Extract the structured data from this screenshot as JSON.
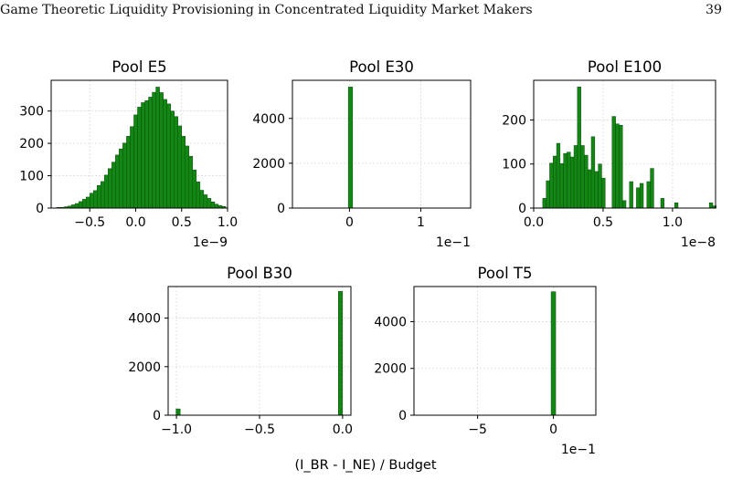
{
  "header": {
    "running_title": "Game Theoretic Liquidity Provisioning in Concentrated Liquidity Market Makers",
    "page_number": "39"
  },
  "colors": {
    "bar_fill": "#138713",
    "bar_edge": "#0d4d0d",
    "grid": "#d9d9d9"
  },
  "chart_data": [
    {
      "type": "bar",
      "title": "Pool E5",
      "xlabel": "",
      "ylabel": "",
      "x_offset_label": "1e−9",
      "xlim": [
        -0.92,
        1.0
      ],
      "ylim": [
        0,
        395
      ],
      "xticks": [
        -0.5,
        0.0,
        0.5,
        1.0
      ],
      "xtick_labels": [
        "−0.5",
        "0.0",
        "0.5",
        "1.0"
      ],
      "yticks": [
        0,
        100,
        200,
        300
      ],
      "ytick_labels": [
        "0",
        "100",
        "200",
        "300"
      ],
      "grid": true,
      "bin_start": -0.86,
      "bin_width": 0.04,
      "values": [
        2,
        2,
        4,
        6,
        10,
        14,
        20,
        27,
        34,
        46,
        54,
        70,
        82,
        102,
        122,
        142,
        164,
        183,
        201,
        222,
        252,
        288,
        312,
        326,
        332,
        343,
        358,
        374,
        357,
        336,
        322,
        300,
        283,
        254,
        222,
        192,
        160,
        118,
        81,
        55,
        41,
        30,
        19,
        12,
        8,
        5
      ]
    },
    {
      "type": "bar",
      "title": "Pool E30",
      "xlabel": "",
      "ylabel": "",
      "x_offset_label": "1e−1",
      "xlim": [
        -0.8,
        1.7
      ],
      "ylim": [
        0,
        5700
      ],
      "xticks": [
        0,
        1
      ],
      "xtick_labels": [
        "0",
        "1"
      ],
      "yticks": [
        0,
        2000,
        4000
      ],
      "ytick_labels": [
        "0",
        "2000",
        "4000"
      ],
      "grid": true,
      "bin_start": -0.016,
      "bin_width": 0.06,
      "values": [
        5400
      ]
    },
    {
      "type": "bar",
      "title": "Pool E100",
      "xlabel": "",
      "ylabel": "",
      "x_offset_label": "1e−8",
      "xlim": [
        0.0,
        1.31
      ],
      "ylim": [
        0,
        290
      ],
      "xticks": [
        0.0,
        0.5,
        1.0
      ],
      "xtick_labels": [
        "0.0",
        "0.5",
        "1.0"
      ],
      "yticks": [
        0,
        100,
        200
      ],
      "ytick_labels": [
        "0",
        "100",
        "200"
      ],
      "grid": true,
      "bin_start": 0.04,
      "bin_width": 0.025,
      "values": [
        0,
        22,
        62,
        102,
        118,
        147,
        101,
        124,
        127,
        116,
        142,
        275,
        142,
        120,
        87,
        162,
        83,
        100,
        68,
        0,
        0,
        208,
        191,
        188,
        17,
        0,
        60,
        0,
        46,
        56,
        0,
        60,
        90,
        0,
        0,
        22,
        0,
        0,
        0,
        12,
        0,
        0,
        0,
        0,
        0,
        0,
        0,
        0,
        0,
        12,
        5
      ]
    },
    {
      "type": "bar",
      "title": "Pool B30",
      "xlabel": "",
      "ylabel": "",
      "x_offset_label": "",
      "xlim": [
        -1.05,
        0.05
      ],
      "ylim": [
        0,
        5300
      ],
      "xticks": [
        -1.0,
        -0.5,
        0.0
      ],
      "xtick_labels": [
        "−1.0",
        "−0.5",
        "0.0"
      ],
      "yticks": [
        0,
        2000,
        4000
      ],
      "ytick_labels": [
        "0",
        "2000",
        "4000"
      ],
      "grid": true,
      "bin_start": -1.0,
      "bin_width": 0.025,
      "values": [
        {
          "x": -0.99,
          "count": 260
        },
        {
          "x": -0.013,
          "count": 5100
        }
      ]
    },
    {
      "type": "bar",
      "title": "Pool T5",
      "xlabel": "",
      "ylabel": "",
      "x_offset_label": "1e−1",
      "xlim": [
        -9.2,
        2.8
      ],
      "ylim": [
        0,
        5500
      ],
      "xticks": [
        -5,
        0
      ],
      "xtick_labels": [
        "−5",
        "0"
      ],
      "yticks": [
        0,
        2000,
        4000
      ],
      "ytick_labels": [
        "0",
        "2000",
        "4000"
      ],
      "grid": true,
      "bin_start": -0.15,
      "bin_width": 0.3,
      "values": [
        5280
      ]
    }
  ],
  "shared_xlabel": "(I_BR -  I_NE) / Budget"
}
